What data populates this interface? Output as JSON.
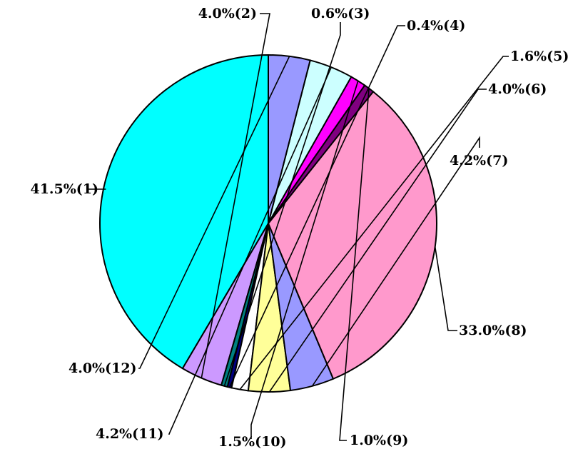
{
  "chart_data": {
    "type": "pie",
    "start_angle_deg": 0,
    "direction": "clockwise",
    "slices": [
      {
        "id": "1",
        "value": 41.5,
        "label": "41.5%(1)",
        "color": "#00FFFF"
      },
      {
        "id": "2",
        "value": 4.0,
        "label": "4.0%(2)",
        "color": "#CC99FF"
      },
      {
        "id": "3",
        "value": 0.6,
        "label": "0.6%(3)",
        "color": "#008080"
      },
      {
        "id": "4",
        "value": 0.4,
        "label": "0.4%(4)",
        "color": "#000080"
      },
      {
        "id": "5",
        "value": 1.6,
        "label": "1.6%(5)",
        "color": "#FFFFFF"
      },
      {
        "id": "6",
        "value": 4.0,
        "label": "4.0%(6)",
        "color": "#FFFF99"
      },
      {
        "id": "7",
        "value": 4.2,
        "label": "4.2%(7)",
        "color": "#9999FF"
      },
      {
        "id": "8",
        "value": 33.0,
        "label": "33.0%(8)",
        "color": "#FF99CC"
      },
      {
        "id": "9",
        "value": 1.0,
        "label": "1.0%(9)",
        "color": "#800080"
      },
      {
        "id": "10",
        "value": 1.5,
        "label": "1.5%(10)",
        "color": "#FF00FF"
      },
      {
        "id": "11",
        "value": 4.2,
        "label": "4.2%(11)",
        "color": "#CCFFFF"
      },
      {
        "id": "12",
        "value": 4.0,
        "label": "4.0%(12)",
        "color": "#9999FF"
      }
    ],
    "legend": "none",
    "labels": "outside with leader lines"
  }
}
